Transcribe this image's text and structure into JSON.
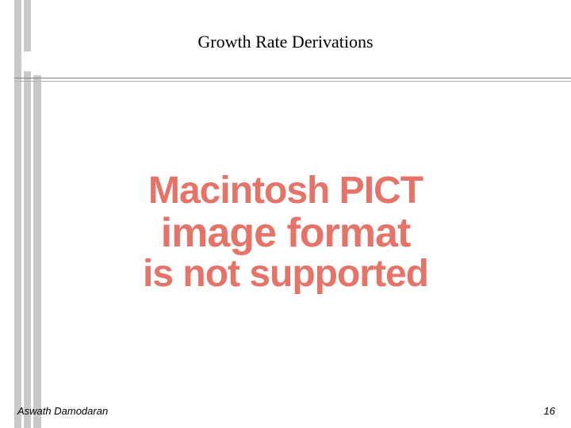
{
  "slide": {
    "title": "Growth Rate Derivations",
    "author": "Aswath Damodaran",
    "page_number": "16"
  },
  "error_message": {
    "line1": "Macintosh PICT",
    "line2": "image format",
    "line3": "is not supported",
    "text_color": "#e57368",
    "font_weight": "bold"
  },
  "styling": {
    "background_color": "#ffffff",
    "sidebar_bar_color": "#c9c9c9",
    "title_font_size": 22,
    "title_color": "#000000",
    "footer_font_size": 13,
    "rule_color": "#808080"
  }
}
